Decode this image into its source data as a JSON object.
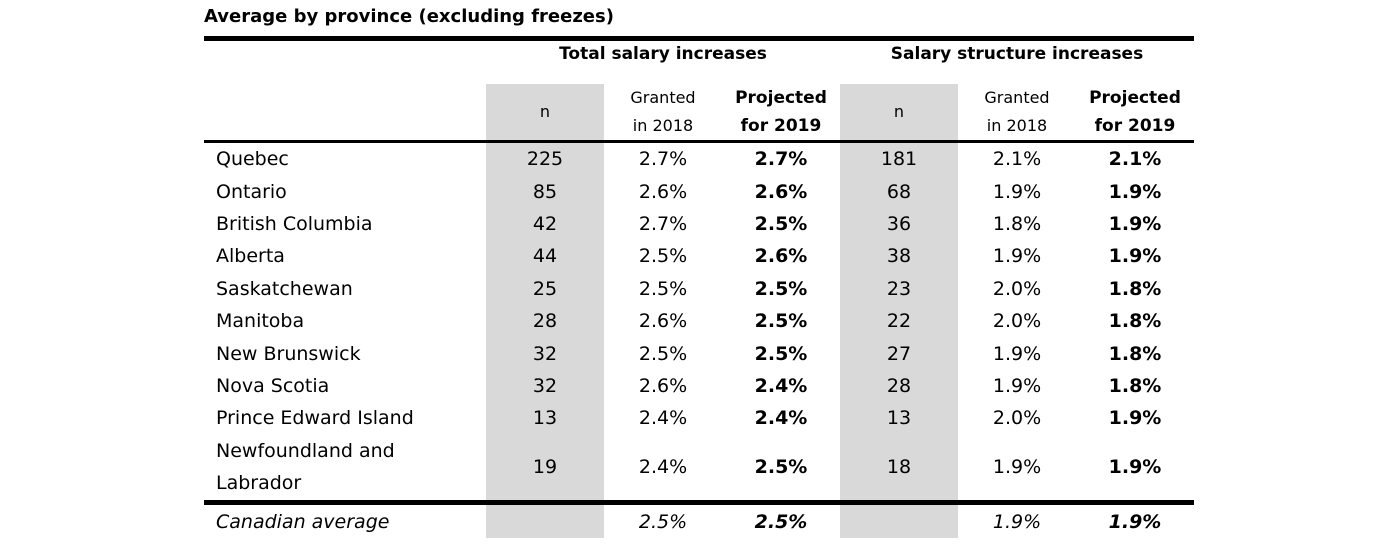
{
  "title": "Average by province (excluding freezes)",
  "groups": {
    "total": "Total salary increases",
    "structure": "Salary structure increases"
  },
  "columns": {
    "n": "n",
    "granted_l1": "Granted",
    "granted_l2": "in 2018",
    "projected_l1": "Projected",
    "projected_l2": "for 2019"
  },
  "rows": [
    {
      "province": "Quebec",
      "total_n": "225",
      "total_granted": "2.7%",
      "total_projected": "2.7%",
      "struct_n": "181",
      "struct_granted": "2.1%",
      "struct_projected": "2.1%"
    },
    {
      "province": "Ontario",
      "total_n": "85",
      "total_granted": "2.6%",
      "total_projected": "2.6%",
      "struct_n": "68",
      "struct_granted": "1.9%",
      "struct_projected": "1.9%"
    },
    {
      "province": "British Columbia",
      "total_n": "42",
      "total_granted": "2.7%",
      "total_projected": "2.5%",
      "struct_n": "36",
      "struct_granted": "1.8%",
      "struct_projected": "1.9%"
    },
    {
      "province": "Alberta",
      "total_n": "44",
      "total_granted": "2.5%",
      "total_projected": "2.6%",
      "struct_n": "38",
      "struct_granted": "1.9%",
      "struct_projected": "1.9%"
    },
    {
      "province": "Saskatchewan",
      "total_n": "25",
      "total_granted": "2.5%",
      "total_projected": "2.5%",
      "struct_n": "23",
      "struct_granted": "2.0%",
      "struct_projected": "1.8%"
    },
    {
      "province": "Manitoba",
      "total_n": "28",
      "total_granted": "2.6%",
      "total_projected": "2.5%",
      "struct_n": "22",
      "struct_granted": "2.0%",
      "struct_projected": "1.8%"
    },
    {
      "province": "New Brunswick",
      "total_n": "32",
      "total_granted": "2.5%",
      "total_projected": "2.5%",
      "struct_n": "27",
      "struct_granted": "1.9%",
      "struct_projected": "1.8%"
    },
    {
      "province": "Nova Scotia",
      "total_n": "32",
      "total_granted": "2.6%",
      "total_projected": "2.4%",
      "struct_n": "28",
      "struct_granted": "1.9%",
      "struct_projected": "1.8%"
    },
    {
      "province": "Prince Edward Island",
      "total_n": "13",
      "total_granted": "2.4%",
      "total_projected": "2.4%",
      "struct_n": "13",
      "struct_granted": "2.0%",
      "struct_projected": "1.9%"
    },
    {
      "province": "Newfoundland and Labrador",
      "province_l1": "Newfoundland and",
      "province_l2": "Labrador",
      "total_n": "19",
      "total_granted": "2.4%",
      "total_projected": "2.5%",
      "struct_n": "18",
      "struct_granted": "1.9%",
      "struct_projected": "1.9%"
    }
  ],
  "average": {
    "label": "Canadian average",
    "total_granted": "2.5%",
    "total_projected": "2.5%",
    "struct_granted": "1.9%",
    "struct_projected": "1.9%"
  }
}
